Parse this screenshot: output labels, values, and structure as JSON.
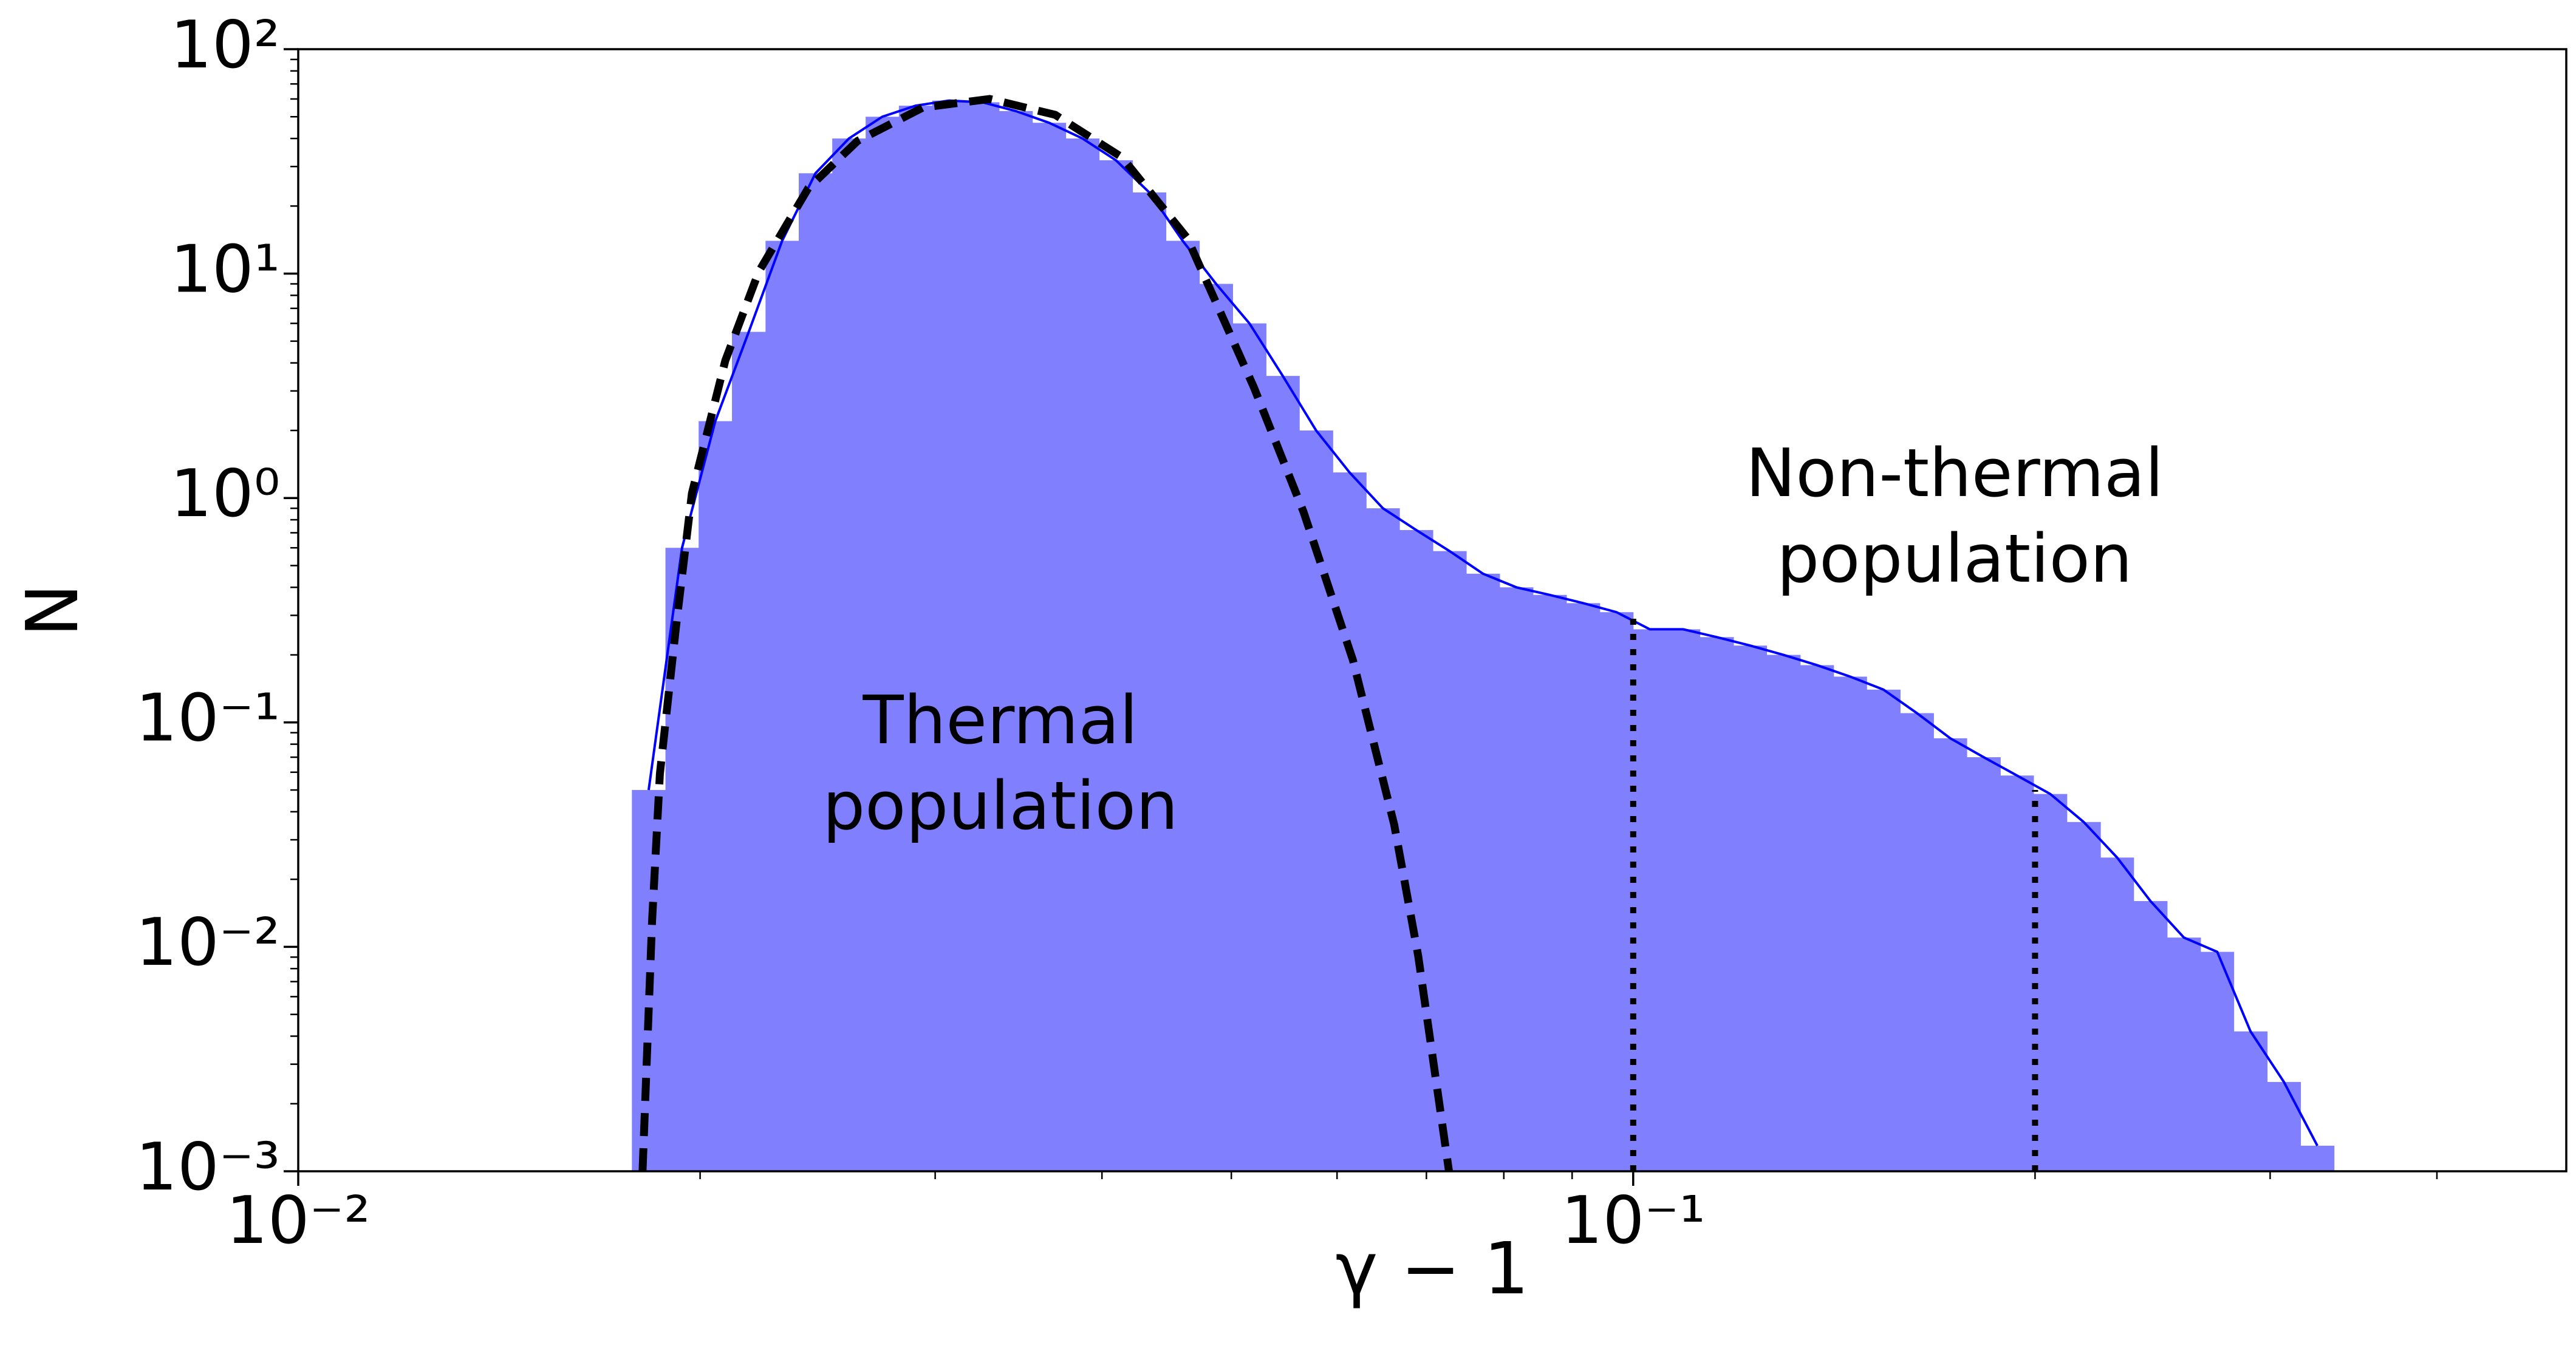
{
  "chart_data": {
    "type": "histogram",
    "xlabel": "γ − 1",
    "ylabel": "N",
    "xscale": "log",
    "yscale": "log",
    "xlim": [
      0.01,
      0.5
    ],
    "ylim": [
      0.001,
      100
    ],
    "xticks": [
      {
        "value": 0.01,
        "label": "10⁻²"
      },
      {
        "value": 0.1,
        "label": "10⁻¹"
      }
    ],
    "xminor": [
      0.02,
      0.03,
      0.04,
      0.05,
      0.06,
      0.07,
      0.08,
      0.09,
      0.2,
      0.3,
      0.4
    ],
    "yticks": [
      {
        "value": 0.001,
        "label": "10⁻³"
      },
      {
        "value": 0.01,
        "label": "10⁻²"
      },
      {
        "value": 0.1,
        "label": "10⁻¹"
      },
      {
        "value": 1,
        "label": "10⁰"
      },
      {
        "value": 10,
        "label": "10¹"
      },
      {
        "value": 100,
        "label": "10²"
      }
    ],
    "yminor": [
      0.002,
      0.003,
      0.004,
      0.005,
      0.006,
      0.007,
      0.008,
      0.009,
      0.02,
      0.03,
      0.04,
      0.05,
      0.06,
      0.07,
      0.08,
      0.09,
      0.2,
      0.3,
      0.4,
      0.5,
      0.6,
      0.7,
      0.8,
      0.9,
      2,
      3,
      4,
      5,
      6,
      7,
      8,
      9,
      20,
      30,
      40,
      50,
      60,
      70,
      80,
      90
    ],
    "color": "#8080ff",
    "line_color": "#0000ff",
    "bins": [
      0.01778,
      0.01884,
      0.01995,
      0.02113,
      0.02239,
      0.02371,
      0.02512,
      0.02661,
      0.02818,
      0.02985,
      0.03162,
      0.0335,
      0.03548,
      0.03758,
      0.03981,
      0.04217,
      0.04467,
      0.04732,
      0.05012,
      0.05309,
      0.05623,
      0.05957,
      0.0631,
      0.06683,
      0.07079,
      0.07499,
      0.07943,
      0.08414,
      0.08913,
      0.09441,
      0.1,
      0.1059,
      0.1122,
      0.1189,
      0.1259,
      0.1334,
      0.1413,
      0.1496,
      0.1585,
      0.1679,
      0.1778,
      0.1884,
      0.1995,
      0.2113,
      0.2239,
      0.2371,
      0.2512,
      0.2661,
      0.2818,
      0.2985,
      0.3162,
      0.335
    ],
    "counts": [
      0.05,
      0.6,
      2.2,
      5.5,
      14,
      28,
      40,
      50,
      56,
      59,
      58,
      53,
      47,
      40,
      32,
      23,
      14,
      9,
      6,
      3.5,
      2,
      1.3,
      0.9,
      0.72,
      0.58,
      0.46,
      0.4,
      0.37,
      0.34,
      0.31,
      0.26,
      0.26,
      0.24,
      0.22,
      0.2,
      0.18,
      0.16,
      0.14,
      0.11,
      0.085,
      0.07,
      0.058,
      0.048,
      0.036,
      0.025,
      0.016,
      0.011,
      0.0095,
      0.0042,
      0.0025,
      0.0013
    ],
    "fit": {
      "color": "#000000",
      "x": [
        0.01811,
        0.01841,
        0.01866,
        0.01919,
        0.01972,
        0.02089,
        0.02213,
        0.0241,
        0.02624,
        0.02938,
        0.03296,
        0.0369,
        0.0414,
        0.04634,
        0.052,
        0.05662,
        0.06166,
        0.06622,
        0.06902,
        0.07278
      ],
      "values": [
        0.001,
        0.013,
        0.059,
        0.27,
        1.05,
        4.1,
        10.2,
        24,
        39,
        55,
        60,
        51,
        33,
        14.4,
        3.1,
        0.87,
        0.19,
        0.035,
        0.0091,
        0.001
      ]
    },
    "markers": [
      {
        "x": 0.1,
        "y": 0.3
      },
      {
        "x": 0.2,
        "y": 0.05
      }
    ],
    "annotations": [
      [
        "Thermal",
        "population"
      ],
      [
        "Non-thermal",
        "population"
      ]
    ]
  }
}
